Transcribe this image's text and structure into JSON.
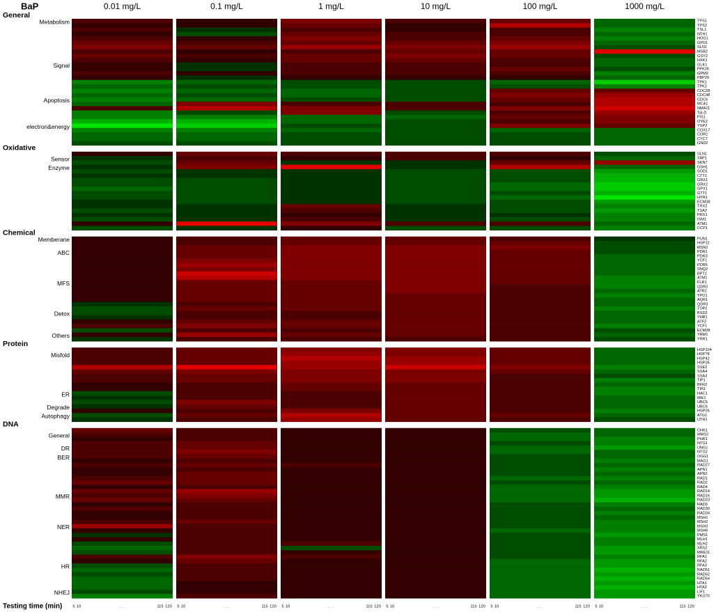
{
  "chart_data": {
    "type": "heatmap",
    "header": "BaP",
    "concentrations": [
      "0.01 mg/L",
      "0.1 mg/L",
      "1 mg/L",
      "10 mg/L",
      "100 mg/L",
      "1000 mg/L"
    ],
    "footer": "Testing time (min)",
    "time_labels": [
      "5",
      "10",
      ". . .",
      "115",
      "120"
    ],
    "panels": [
      {
        "title": "General",
        "groups": [
          {
            "label": "Metabolism",
            "row": 0
          },
          {
            "label": "Signal",
            "row": 10
          },
          {
            "label": "Apoptosis",
            "row": 18
          },
          {
            "label": "electron&energy",
            "row": 24
          }
        ],
        "genes": [
          "TPS1",
          "TPS2",
          "TSL1",
          "NTH1",
          "HOG1",
          "GPD1",
          "SLN1",
          "MSB2",
          "GSY2",
          "HXK1",
          "GLK1",
          "PFK26",
          "GPM2",
          "FBP26",
          "TPK1",
          "TPK2",
          "CDC28",
          "CDC48",
          "CDC6",
          "MCA1",
          "NMA11",
          "Tat-D",
          "FIS1",
          "OYE2",
          "YSP2",
          "COX17",
          "COR1",
          "CYC7",
          "GND2"
        ],
        "values": [
          [
            2,
            1,
            4,
            2,
            3,
            -3
          ],
          [
            1,
            1,
            3,
            1,
            6,
            -3
          ],
          [
            2,
            -1,
            2,
            1,
            2,
            -4
          ],
          [
            1,
            -2,
            3,
            2,
            2,
            -3
          ],
          [
            2,
            1,
            4,
            2,
            3,
            -4
          ],
          [
            3,
            2,
            3,
            3,
            4,
            -3
          ],
          [
            4,
            3,
            5,
            4,
            5,
            -2
          ],
          [
            2,
            1,
            2,
            3,
            3,
            8
          ],
          [
            3,
            2,
            3,
            4,
            3,
            -2
          ],
          [
            2,
            1,
            3,
            3,
            2,
            -3
          ],
          [
            1,
            -1,
            2,
            2,
            2,
            -3
          ],
          [
            1,
            -1,
            2,
            2,
            3,
            -2
          ],
          [
            2,
            1,
            2,
            2,
            2,
            -4
          ],
          [
            1,
            -1,
            1,
            1,
            1,
            -3
          ],
          [
            -4,
            -3,
            -2,
            -2,
            -3,
            -7
          ],
          [
            -3,
            -2,
            -2,
            -2,
            -2,
            -4
          ],
          [
            -4,
            -3,
            -3,
            -2,
            3,
            3
          ],
          [
            -3,
            -2,
            -3,
            -2,
            4,
            5
          ],
          [
            -4,
            -3,
            -2,
            -2,
            3,
            6
          ],
          [
            -3,
            4,
            2,
            2,
            2,
            6
          ],
          [
            2,
            6,
            4,
            2,
            4,
            7
          ],
          [
            -4,
            -2,
            4,
            -2,
            2,
            5
          ],
          [
            -4,
            -4,
            -3,
            -3,
            3,
            4
          ],
          [
            -6,
            -6,
            -3,
            -2,
            2,
            4
          ],
          [
            -8,
            -7,
            -2,
            -2,
            4,
            3
          ],
          [
            -4,
            -4,
            -3,
            -2,
            -3,
            -3
          ],
          [
            -3,
            -3,
            -2,
            -2,
            -2,
            -3
          ],
          [
            -3,
            -3,
            -2,
            -2,
            -2,
            -3
          ],
          [
            -2,
            -2,
            -2,
            -2,
            -2,
            -3
          ]
        ]
      },
      {
        "title": "Oxidative",
        "groups": [
          {
            "label": "Sensor",
            "row": 1
          },
          {
            "label": "Enzyme",
            "row": 3
          }
        ],
        "genes": [
          "SLN1",
          "YAP1",
          "SKN7",
          "GSH1",
          "SOD1",
          "CTT1",
          "GRX1",
          "GRX2",
          "GPX1",
          "GTT1",
          "HYR1",
          "ECM38",
          "TRX2",
          "TSA2",
          "PRX1",
          "ISM1",
          "ATM1",
          "CCP1"
        ],
        "values": [
          [
            1,
            3,
            2,
            2,
            2,
            -2
          ],
          [
            -1,
            2,
            1,
            2,
            1,
            -3
          ],
          [
            -2,
            3,
            -1,
            -1,
            3,
            5
          ],
          [
            -1,
            4,
            8,
            -1,
            6,
            -3
          ],
          [
            -2,
            -1,
            -1,
            -2,
            -2,
            -5
          ],
          [
            -1,
            -1,
            -1,
            -2,
            -2,
            -6
          ],
          [
            -2,
            -2,
            -1,
            -2,
            -2,
            -6
          ],
          [
            -2,
            -2,
            -1,
            -2,
            -3,
            -7
          ],
          [
            -3,
            -2,
            -1,
            -2,
            -3,
            -7
          ],
          [
            -2,
            -2,
            -1,
            -2,
            -2,
            -6
          ],
          [
            -2,
            -2,
            -1,
            -2,
            -3,
            -8
          ],
          [
            -1,
            -2,
            -1,
            -2,
            -2,
            -5
          ],
          [
            -1,
            -1,
            3,
            -1,
            -2,
            -4
          ],
          [
            -2,
            -1,
            2,
            -1,
            -2,
            -5
          ],
          [
            -1,
            -1,
            1,
            -1,
            -1,
            -4
          ],
          [
            -2,
            -1,
            2,
            -1,
            -2,
            -4
          ],
          [
            1,
            8,
            4,
            2,
            2,
            -3
          ],
          [
            -2,
            -1,
            1,
            -2,
            -2,
            -4
          ]
        ]
      },
      {
        "title": "Chemical",
        "groups": [
          {
            "label": "Memberane",
            "row": 0
          },
          {
            "label": "ABC",
            "row": 3
          },
          {
            "label": "MFS",
            "row": 10
          },
          {
            "label": "Detox",
            "row": 17
          },
          {
            "label": "Others",
            "row": 22
          }
        ],
        "genes": [
          "PUN1",
          "HSP12",
          "MSN2",
          "PDR1",
          "PDR3",
          "YCF1",
          "PDR5",
          "SNQ2",
          "BPT1",
          "ATM1",
          "FLR1",
          "QDR2",
          "ATR1",
          "TPO1",
          "AQR1",
          "QDR3",
          "TOP2",
          "BSD2",
          "YHB1",
          "ATF2",
          "YCF1",
          "ECM38",
          "YRM1",
          "YRR1"
        ],
        "values": [
          [
            1,
            2,
            3,
            3,
            2,
            -1
          ],
          [
            1,
            2,
            3,
            3,
            3,
            -2
          ],
          [
            1,
            3,
            4,
            4,
            4,
            -2
          ],
          [
            1,
            3,
            4,
            4,
            3,
            -2
          ],
          [
            1,
            3,
            4,
            4,
            3,
            -3
          ],
          [
            1,
            4,
            4,
            4,
            3,
            -3
          ],
          [
            1,
            5,
            4,
            4,
            3,
            -3
          ],
          [
            1,
            4,
            4,
            4,
            3,
            -3
          ],
          [
            1,
            7,
            4,
            4,
            3,
            -3
          ],
          [
            1,
            6,
            4,
            4,
            3,
            -4
          ],
          [
            1,
            3,
            3,
            4,
            3,
            -4
          ],
          [
            1,
            3,
            3,
            4,
            2,
            -4
          ],
          [
            1,
            3,
            3,
            4,
            2,
            -3
          ],
          [
            1,
            3,
            3,
            3,
            2,
            -4
          ],
          [
            1,
            3,
            3,
            3,
            2,
            -3
          ],
          [
            -1,
            2,
            3,
            3,
            2,
            -3
          ],
          [
            -2,
            3,
            3,
            3,
            2,
            -4
          ],
          [
            -2,
            2,
            2,
            3,
            2,
            -3
          ],
          [
            -1,
            2,
            2,
            3,
            2,
            -3
          ],
          [
            1,
            3,
            3,
            3,
            2,
            -3
          ],
          [
            2,
            4,
            3,
            3,
            2,
            -4
          ],
          [
            -2,
            2,
            2,
            3,
            2,
            -2
          ],
          [
            1,
            5,
            3,
            3,
            2,
            -3
          ],
          [
            -1,
            2,
            2,
            2,
            2,
            -2
          ]
        ]
      },
      {
        "title": "Protein",
        "groups": [
          {
            "label": "Misfold",
            "row": 1
          },
          {
            "label": "ER",
            "row": 10
          },
          {
            "label": "Degrade",
            "row": 13
          },
          {
            "label": "Autophagy",
            "row": 15
          }
        ],
        "genes": [
          "HSP104",
          "HSP78",
          "HSP42",
          "HSP26",
          "SSE2",
          "SSA4",
          "SSA3",
          "TIP1",
          "BFR2",
          "TIR1",
          "HAC1",
          "IRE1",
          "UBC5",
          "UBC6",
          "HSP26",
          "ATG1",
          "UTH1"
        ],
        "values": [
          [
            2,
            3,
            4,
            4,
            3,
            -3
          ],
          [
            2,
            3,
            5,
            4,
            3,
            -3
          ],
          [
            2,
            3,
            6,
            5,
            3,
            -3
          ],
          [
            2,
            3,
            5,
            5,
            3,
            -3
          ],
          [
            6,
            8,
            5,
            7,
            4,
            -4
          ],
          [
            3,
            4,
            4,
            4,
            3,
            -3
          ],
          [
            2,
            3,
            4,
            4,
            2,
            -2
          ],
          [
            2,
            3,
            4,
            4,
            2,
            -4
          ],
          [
            1,
            2,
            3,
            3,
            2,
            -3
          ],
          [
            1,
            2,
            3,
            3,
            2,
            -4
          ],
          [
            -2,
            2,
            2,
            3,
            2,
            -4
          ],
          [
            -1,
            2,
            2,
            3,
            2,
            -3
          ],
          [
            -2,
            4,
            2,
            3,
            2,
            -3
          ],
          [
            -1,
            3,
            2,
            3,
            2,
            -3
          ],
          [
            1,
            2,
            4,
            3,
            2,
            -4
          ],
          [
            -2,
            3,
            6,
            3,
            3,
            -3
          ],
          [
            -1,
            2,
            5,
            3,
            2,
            -2
          ]
        ]
      },
      {
        "title": "DNA",
        "groups": [
          {
            "label": "General",
            "row": 1
          },
          {
            "label": "DR",
            "row": 4
          },
          {
            "label": "BER",
            "row": 6
          },
          {
            "label": "MMR",
            "row": 15
          },
          {
            "label": "NER",
            "row": 22
          },
          {
            "label": "HR",
            "row": 31
          },
          {
            "label": "NHEJ",
            "row": 37
          }
        ],
        "genes": [
          "CHK1",
          "MMS2",
          "PHR1",
          "NTG1",
          "UNG1",
          "NTG2",
          "OGG1",
          "MAG1",
          "RAD27",
          "APN1",
          "APN2",
          "RAD1",
          "RAD2",
          "RAD4",
          "RAD14",
          "RAD16",
          "RAD23",
          "RAD9",
          "RAD30",
          "RAD34",
          "MSH1",
          "MSH2",
          "MSH3",
          "MSH6",
          "PMS1",
          "MLH1",
          "MLH2",
          "XRS2",
          "MRE11",
          "RFA1",
          "RFA2",
          "RFA3",
          "RAD51",
          "RAD52",
          "RAD54",
          "HTA1",
          "HTA2",
          "LIF1",
          "YKU70"
        ],
        "values": [
          [
            3,
            2,
            1,
            1,
            -2,
            -3
          ],
          [
            2,
            2,
            1,
            1,
            -3,
            -3
          ],
          [
            1,
            2,
            1,
            1,
            -3,
            -4
          ],
          [
            2,
            3,
            1,
            1,
            -2,
            -4
          ],
          [
            2,
            3,
            1,
            1,
            -3,
            -5
          ],
          [
            2,
            4,
            1,
            1,
            -3,
            -3
          ],
          [
            2,
            3,
            1,
            1,
            -2,
            -3
          ],
          [
            1,
            2,
            1,
            1,
            -2,
            -4
          ],
          [
            2,
            3,
            2,
            1,
            -2,
            -3
          ],
          [
            1,
            2,
            1,
            1,
            -2,
            -4
          ],
          [
            1,
            3,
            1,
            1,
            -2,
            -3
          ],
          [
            2,
            3,
            1,
            1,
            -3,
            -4
          ],
          [
            3,
            3,
            1,
            1,
            -2,
            -3
          ],
          [
            1,
            2,
            1,
            1,
            -3,
            -4
          ],
          [
            3,
            5,
            1,
            1,
            -3,
            -5
          ],
          [
            2,
            4,
            1,
            1,
            -3,
            -5
          ],
          [
            3,
            3,
            1,
            1,
            -3,
            -6
          ],
          [
            1,
            2,
            1,
            1,
            -2,
            -4
          ],
          [
            2,
            2,
            1,
            1,
            -2,
            -3
          ],
          [
            1,
            2,
            1,
            1,
            -2,
            -4
          ],
          [
            1,
            2,
            1,
            1,
            -2,
            -3
          ],
          [
            2,
            3,
            1,
            1,
            -2,
            -4
          ],
          [
            5,
            2,
            1,
            1,
            -2,
            -4
          ],
          [
            1,
            2,
            1,
            1,
            -3,
            -4
          ],
          [
            -1,
            2,
            1,
            1,
            -2,
            -5
          ],
          [
            1,
            2,
            1,
            1,
            -2,
            -4
          ],
          [
            -2,
            2,
            2,
            1,
            -2,
            -4
          ],
          [
            -3,
            2,
            -2,
            1,
            -2,
            -5
          ],
          [
            -2,
            2,
            1,
            1,
            -2,
            -5
          ],
          [
            2,
            4,
            2,
            1,
            -2,
            -4
          ],
          [
            1,
            3,
            1,
            1,
            -3,
            -5
          ],
          [
            -2,
            2,
            1,
            1,
            -3,
            -5
          ],
          [
            -3,
            2,
            1,
            1,
            -3,
            -6
          ],
          [
            -2,
            2,
            1,
            1,
            -3,
            -5
          ],
          [
            -3,
            2,
            1,
            1,
            -3,
            -6
          ],
          [
            -3,
            1,
            1,
            1,
            -3,
            -5
          ],
          [
            -3,
            1,
            1,
            1,
            -3,
            -6
          ],
          [
            -2,
            1,
            1,
            1,
            -3,
            -5
          ],
          [
            -4,
            2,
            1,
            1,
            -3,
            -5
          ]
        ]
      }
    ]
  }
}
